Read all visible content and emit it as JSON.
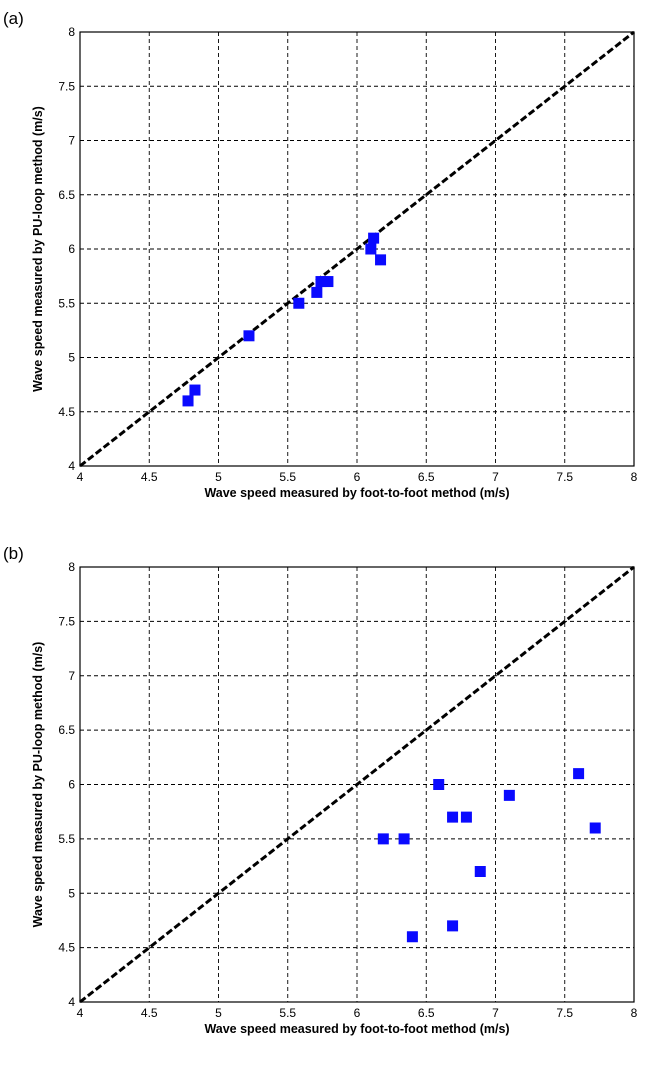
{
  "chart_data": [
    {
      "panel_label": "(a)",
      "type": "scatter",
      "xlabel": "Wave speed measured by foot-to-foot method (m/s)",
      "ylabel": "Wave speed measured by PU-loop method (m/s)",
      "xlim": [
        4,
        8
      ],
      "ylim": [
        4,
        8
      ],
      "xticks": [
        "4",
        "4.5",
        "5",
        "5.5",
        "6",
        "6.5",
        "7",
        "7.5",
        "8"
      ],
      "yticks": [
        "4",
        "4.5",
        "5",
        "5.5",
        "6",
        "6.5",
        "7",
        "7.5",
        "8"
      ],
      "grid": true,
      "reference_line": "y = x (dashed black)",
      "marker_color": "#0a0aff",
      "points": [
        {
          "x": 4.78,
          "y": 4.6
        },
        {
          "x": 4.83,
          "y": 4.7
        },
        {
          "x": 5.22,
          "y": 5.2
        },
        {
          "x": 5.58,
          "y": 5.5
        },
        {
          "x": 5.71,
          "y": 5.6
        },
        {
          "x": 5.74,
          "y": 5.7
        },
        {
          "x": 5.79,
          "y": 5.7
        },
        {
          "x": 6.1,
          "y": 6.0
        },
        {
          "x": 6.12,
          "y": 6.1
        },
        {
          "x": 6.17,
          "y": 5.9
        }
      ]
    },
    {
      "panel_label": "(b)",
      "type": "scatter",
      "xlabel": "Wave speed measured by foot-to-foot method (m/s)",
      "ylabel": "Wave speed measured by PU-loop method (m/s)",
      "xlim": [
        4,
        8
      ],
      "ylim": [
        4,
        8
      ],
      "xticks": [
        "4",
        "4.5",
        "5",
        "5.5",
        "6",
        "6.5",
        "7",
        "7.5",
        "8"
      ],
      "yticks": [
        "4",
        "4.5",
        "5",
        "5.5",
        "6",
        "6.5",
        "7",
        "7.5",
        "8"
      ],
      "grid": true,
      "reference_line": "y = x (dashed black)",
      "marker_color": "#0a0aff",
      "points": [
        {
          "x": 6.19,
          "y": 5.5
        },
        {
          "x": 6.34,
          "y": 5.5
        },
        {
          "x": 6.4,
          "y": 4.6
        },
        {
          "x": 6.59,
          "y": 6.0
        },
        {
          "x": 6.69,
          "y": 5.7
        },
        {
          "x": 6.79,
          "y": 5.7
        },
        {
          "x": 6.69,
          "y": 4.7
        },
        {
          "x": 6.89,
          "y": 5.2
        },
        {
          "x": 7.1,
          "y": 5.9
        },
        {
          "x": 7.6,
          "y": 6.1
        },
        {
          "x": 7.72,
          "y": 5.6
        }
      ]
    }
  ]
}
